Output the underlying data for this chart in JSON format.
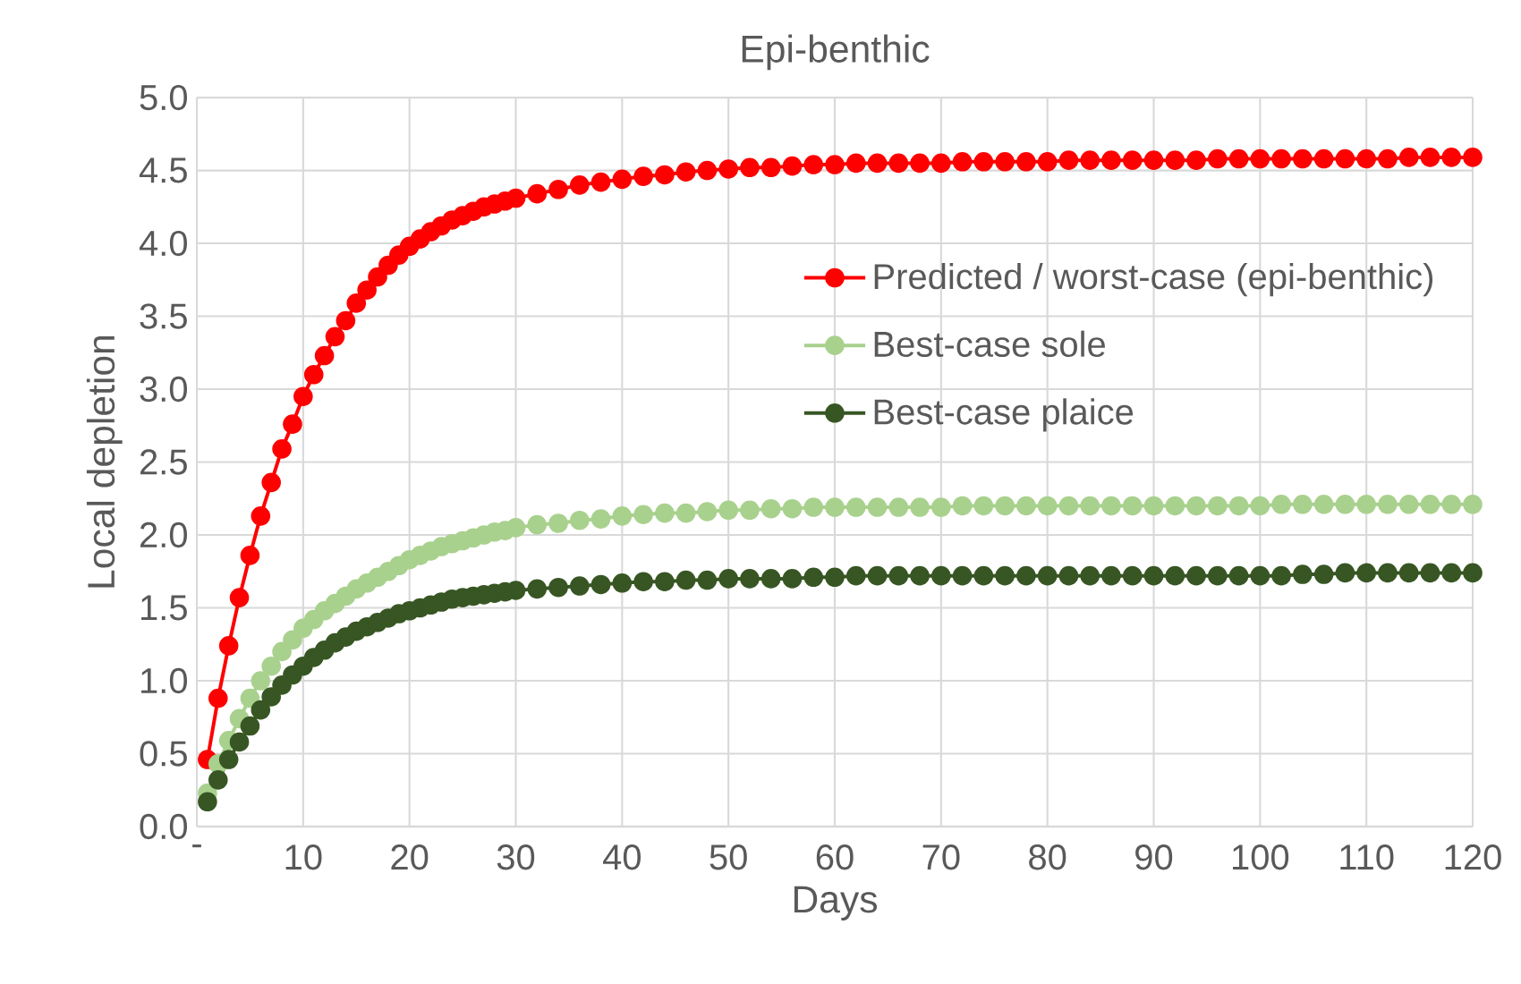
{
  "chart_data": {
    "type": "line",
    "title": "Epi-benthic",
    "xlabel": "Days",
    "ylabel": "Local depletion",
    "x": [
      1,
      2,
      3,
      4,
      5,
      6,
      7,
      8,
      9,
      10,
      11,
      12,
      13,
      14,
      15,
      16,
      17,
      18,
      19,
      20,
      21,
      22,
      23,
      24,
      25,
      26,
      27,
      28,
      29,
      30,
      32,
      34,
      36,
      38,
      40,
      42,
      44,
      46,
      48,
      50,
      52,
      54,
      56,
      58,
      60,
      62,
      64,
      66,
      68,
      70,
      72,
      74,
      76,
      78,
      80,
      82,
      84,
      86,
      88,
      90,
      92,
      94,
      96,
      98,
      100,
      102,
      104,
      106,
      108,
      110,
      112,
      114,
      116,
      118,
      120
    ],
    "series": [
      {
        "name": "Predicted / worst-case (epi-benthic)",
        "color": "#ff0000",
        "values": [
          0.46,
          0.88,
          1.24,
          1.57,
          1.86,
          2.13,
          2.36,
          2.59,
          2.76,
          2.95,
          3.1,
          3.23,
          3.36,
          3.47,
          3.59,
          3.68,
          3.77,
          3.85,
          3.92,
          3.98,
          4.03,
          4.08,
          4.12,
          4.16,
          4.19,
          4.22,
          4.25,
          4.27,
          4.29,
          4.31,
          4.34,
          4.37,
          4.4,
          4.42,
          4.44,
          4.46,
          4.47,
          4.49,
          4.5,
          4.51,
          4.52,
          4.52,
          4.53,
          4.54,
          4.54,
          4.55,
          4.55,
          4.55,
          4.55,
          4.55,
          4.56,
          4.56,
          4.56,
          4.56,
          4.56,
          4.57,
          4.57,
          4.57,
          4.57,
          4.57,
          4.57,
          4.57,
          4.58,
          4.58,
          4.58,
          4.58,
          4.58,
          4.58,
          4.58,
          4.58,
          4.58,
          4.59,
          4.59,
          4.59,
          4.59
        ]
      },
      {
        "name": "Best-case sole",
        "color": "#a9d18e",
        "values": [
          0.23,
          0.43,
          0.59,
          0.74,
          0.88,
          1.0,
          1.1,
          1.2,
          1.28,
          1.36,
          1.42,
          1.48,
          1.53,
          1.58,
          1.63,
          1.67,
          1.71,
          1.75,
          1.79,
          1.83,
          1.86,
          1.89,
          1.92,
          1.94,
          1.96,
          1.98,
          2.0,
          2.02,
          2.03,
          2.05,
          2.07,
          2.08,
          2.1,
          2.11,
          2.13,
          2.14,
          2.15,
          2.15,
          2.16,
          2.17,
          2.17,
          2.18,
          2.18,
          2.19,
          2.19,
          2.19,
          2.19,
          2.19,
          2.19,
          2.19,
          2.2,
          2.2,
          2.2,
          2.2,
          2.2,
          2.2,
          2.2,
          2.2,
          2.2,
          2.2,
          2.2,
          2.2,
          2.2,
          2.2,
          2.2,
          2.21,
          2.21,
          2.21,
          2.21,
          2.21,
          2.21,
          2.21,
          2.21,
          2.21,
          2.21
        ]
      },
      {
        "name": "Best-case plaice",
        "color": "#375623",
        "values": [
          0.17,
          0.32,
          0.46,
          0.58,
          0.69,
          0.8,
          0.89,
          0.97,
          1.04,
          1.1,
          1.16,
          1.21,
          1.26,
          1.3,
          1.34,
          1.37,
          1.4,
          1.43,
          1.46,
          1.48,
          1.5,
          1.52,
          1.54,
          1.56,
          1.57,
          1.58,
          1.59,
          1.6,
          1.61,
          1.62,
          1.63,
          1.64,
          1.65,
          1.66,
          1.67,
          1.68,
          1.68,
          1.69,
          1.69,
          1.7,
          1.7,
          1.7,
          1.7,
          1.71,
          1.71,
          1.72,
          1.72,
          1.72,
          1.72,
          1.72,
          1.72,
          1.72,
          1.72,
          1.72,
          1.72,
          1.72,
          1.72,
          1.72,
          1.72,
          1.72,
          1.72,
          1.72,
          1.72,
          1.72,
          1.72,
          1.72,
          1.73,
          1.73,
          1.74,
          1.74,
          1.74,
          1.74,
          1.74,
          1.74,
          1.74
        ]
      }
    ],
    "xlim": [
      0,
      120
    ],
    "ylim": [
      0,
      5
    ],
    "xticks": [
      {
        "value": 0,
        "label": "-"
      },
      10,
      20,
      30,
      40,
      50,
      60,
      70,
      80,
      90,
      100,
      110,
      120
    ],
    "yticks": [
      {
        "value": 0,
        "label": "0.0"
      },
      {
        "value": 0.5,
        "label": "0.5"
      },
      {
        "value": 1,
        "label": "1.0"
      },
      {
        "value": 1.5,
        "label": "1.5"
      },
      {
        "value": 2,
        "label": "2.0"
      },
      {
        "value": 2.5,
        "label": "2.5"
      },
      {
        "value": 3,
        "label": "3.0"
      },
      {
        "value": 3.5,
        "label": "3.5"
      },
      {
        "value": 4,
        "label": "4.0"
      },
      {
        "value": 4.5,
        "label": "4.5"
      },
      {
        "value": 5,
        "label": "5.0"
      }
    ],
    "grid": true,
    "legend": "right",
    "marker": "circle",
    "line_style": "solid"
  }
}
